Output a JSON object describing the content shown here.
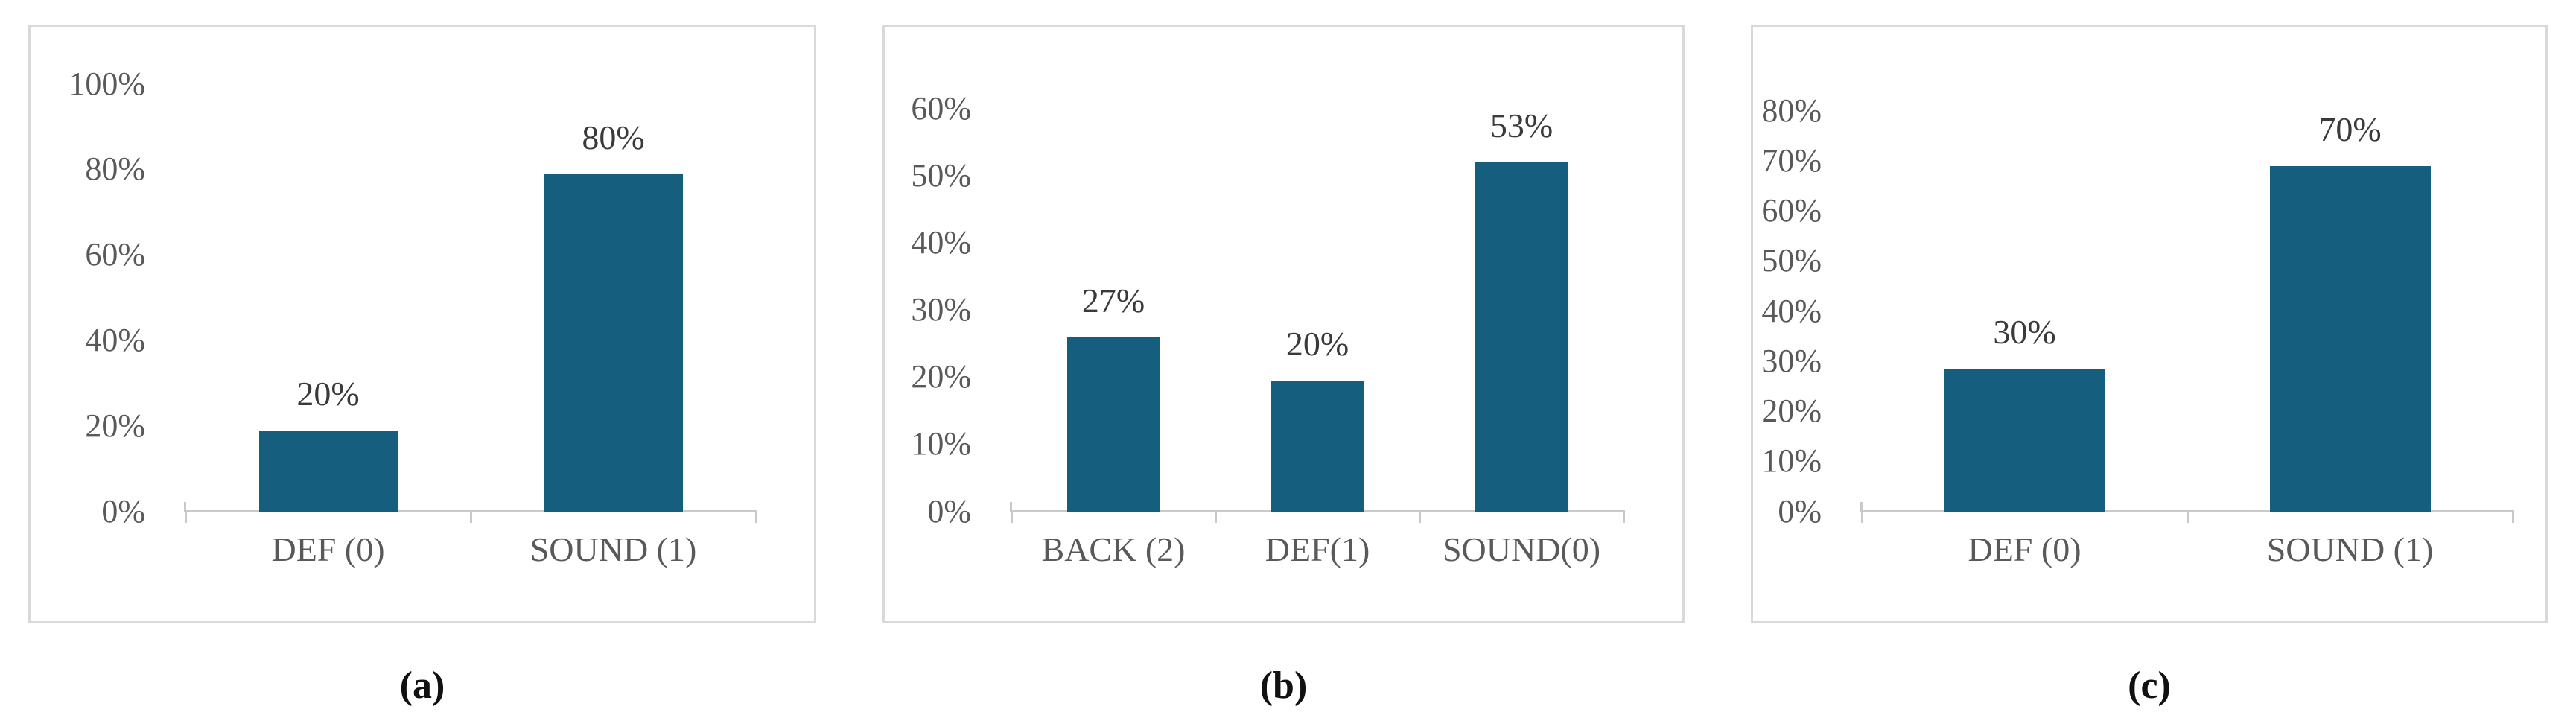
{
  "style": {
    "background": "#FFFFFF",
    "bar_color": "#165E7D",
    "axis_line_color": "#C9C9C9",
    "tick_label_color": "#595959",
    "category_label_color": "#595959",
    "data_label_color": "#3A3A3A",
    "caption_color": "#111111",
    "panel_border_color": "#D9D9D9"
  },
  "chart_data": [
    {
      "id": "a",
      "type": "bar",
      "caption": "(a)",
      "categories": [
        "DEF (0)",
        "SOUND (1)"
      ],
      "values": [
        20,
        80
      ],
      "data_labels": [
        "20%",
        "80%"
      ],
      "drawn_percent": [
        19,
        79
      ],
      "ylim": [
        0,
        100
      ],
      "ytick_step": 20,
      "ytick_labels": [
        "0%",
        "20%",
        "40%",
        "60%",
        "80%",
        "100%"
      ],
      "grid": false,
      "legend": "none"
    },
    {
      "id": "b",
      "type": "bar",
      "caption": "(b)",
      "categories": [
        "BACK (2)",
        "DEF(1)",
        "SOUND(0)"
      ],
      "values": [
        27,
        20,
        53
      ],
      "data_labels": [
        "27%",
        "20%",
        "53%"
      ],
      "drawn_percent": [
        26,
        19.5,
        52
      ],
      "ylim": [
        0,
        60
      ],
      "ytick_step": 10,
      "ytick_labels": [
        "0%",
        "10%",
        "20%",
        "30%",
        "40%",
        "50%",
        "60%"
      ],
      "grid": false,
      "legend": "none"
    },
    {
      "id": "c",
      "type": "bar",
      "caption": "(c)",
      "categories": [
        "DEF (0)",
        "SOUND (1)"
      ],
      "values": [
        30,
        70
      ],
      "data_labels": [
        "30%",
        "70%"
      ],
      "drawn_percent": [
        28.5,
        69
      ],
      "ylim": [
        0,
        80
      ],
      "ytick_step": 10,
      "ytick_labels": [
        "0%",
        "10%",
        "20%",
        "30%",
        "40%",
        "50%",
        "60%",
        "70%",
        "80%"
      ],
      "grid": false,
      "legend": "none"
    }
  ]
}
